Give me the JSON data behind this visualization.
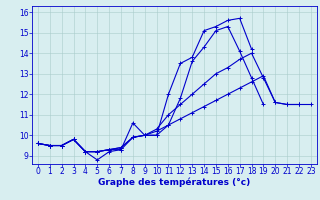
{
  "background_color": "#d8eef0",
  "grid_color": "#aacccc",
  "line_color": "#0000cc",
  "marker": "+",
  "markersize": 3,
  "linewidth": 0.8,
  "xlabel": "Graphe des températures (°c)",
  "xlabel_fontsize": 6.5,
  "tick_fontsize": 5.5,
  "xlim": [
    -0.5,
    23.5
  ],
  "ylim": [
    8.6,
    16.3
  ],
  "xticks": [
    0,
    1,
    2,
    3,
    4,
    5,
    6,
    7,
    8,
    9,
    10,
    11,
    12,
    13,
    14,
    15,
    16,
    17,
    18,
    19,
    20,
    21,
    22,
    23
  ],
  "yticks": [
    9,
    10,
    11,
    12,
    13,
    14,
    15,
    16
  ],
  "series": [
    [
      9.6,
      9.5,
      9.5,
      9.8,
      9.2,
      9.2,
      9.3,
      9.4,
      9.9,
      10.0,
      10.0,
      12.0,
      13.5,
      13.8,
      15.1,
      15.3,
      15.6,
      15.7,
      14.2,
      null,
      null,
      null,
      null,
      null
    ],
    [
      9.6,
      9.5,
      9.5,
      9.8,
      9.2,
      8.8,
      9.2,
      9.3,
      10.6,
      10.0,
      10.0,
      10.5,
      11.8,
      13.6,
      14.3,
      15.1,
      15.3,
      14.1,
      12.8,
      11.5,
      null,
      null,
      null,
      null
    ],
    [
      9.6,
      9.5,
      9.5,
      9.8,
      9.2,
      9.2,
      9.3,
      9.3,
      9.9,
      10.0,
      10.3,
      11.0,
      11.5,
      12.0,
      12.5,
      13.0,
      13.3,
      13.7,
      14.0,
      12.8,
      11.6,
      11.5,
      11.5,
      null
    ],
    [
      9.6,
      9.5,
      9.5,
      9.8,
      9.2,
      9.2,
      9.3,
      9.4,
      9.9,
      10.0,
      10.2,
      10.5,
      10.8,
      11.1,
      11.4,
      11.7,
      12.0,
      12.3,
      12.6,
      12.9,
      11.6,
      11.5,
      11.5,
      11.5
    ]
  ]
}
